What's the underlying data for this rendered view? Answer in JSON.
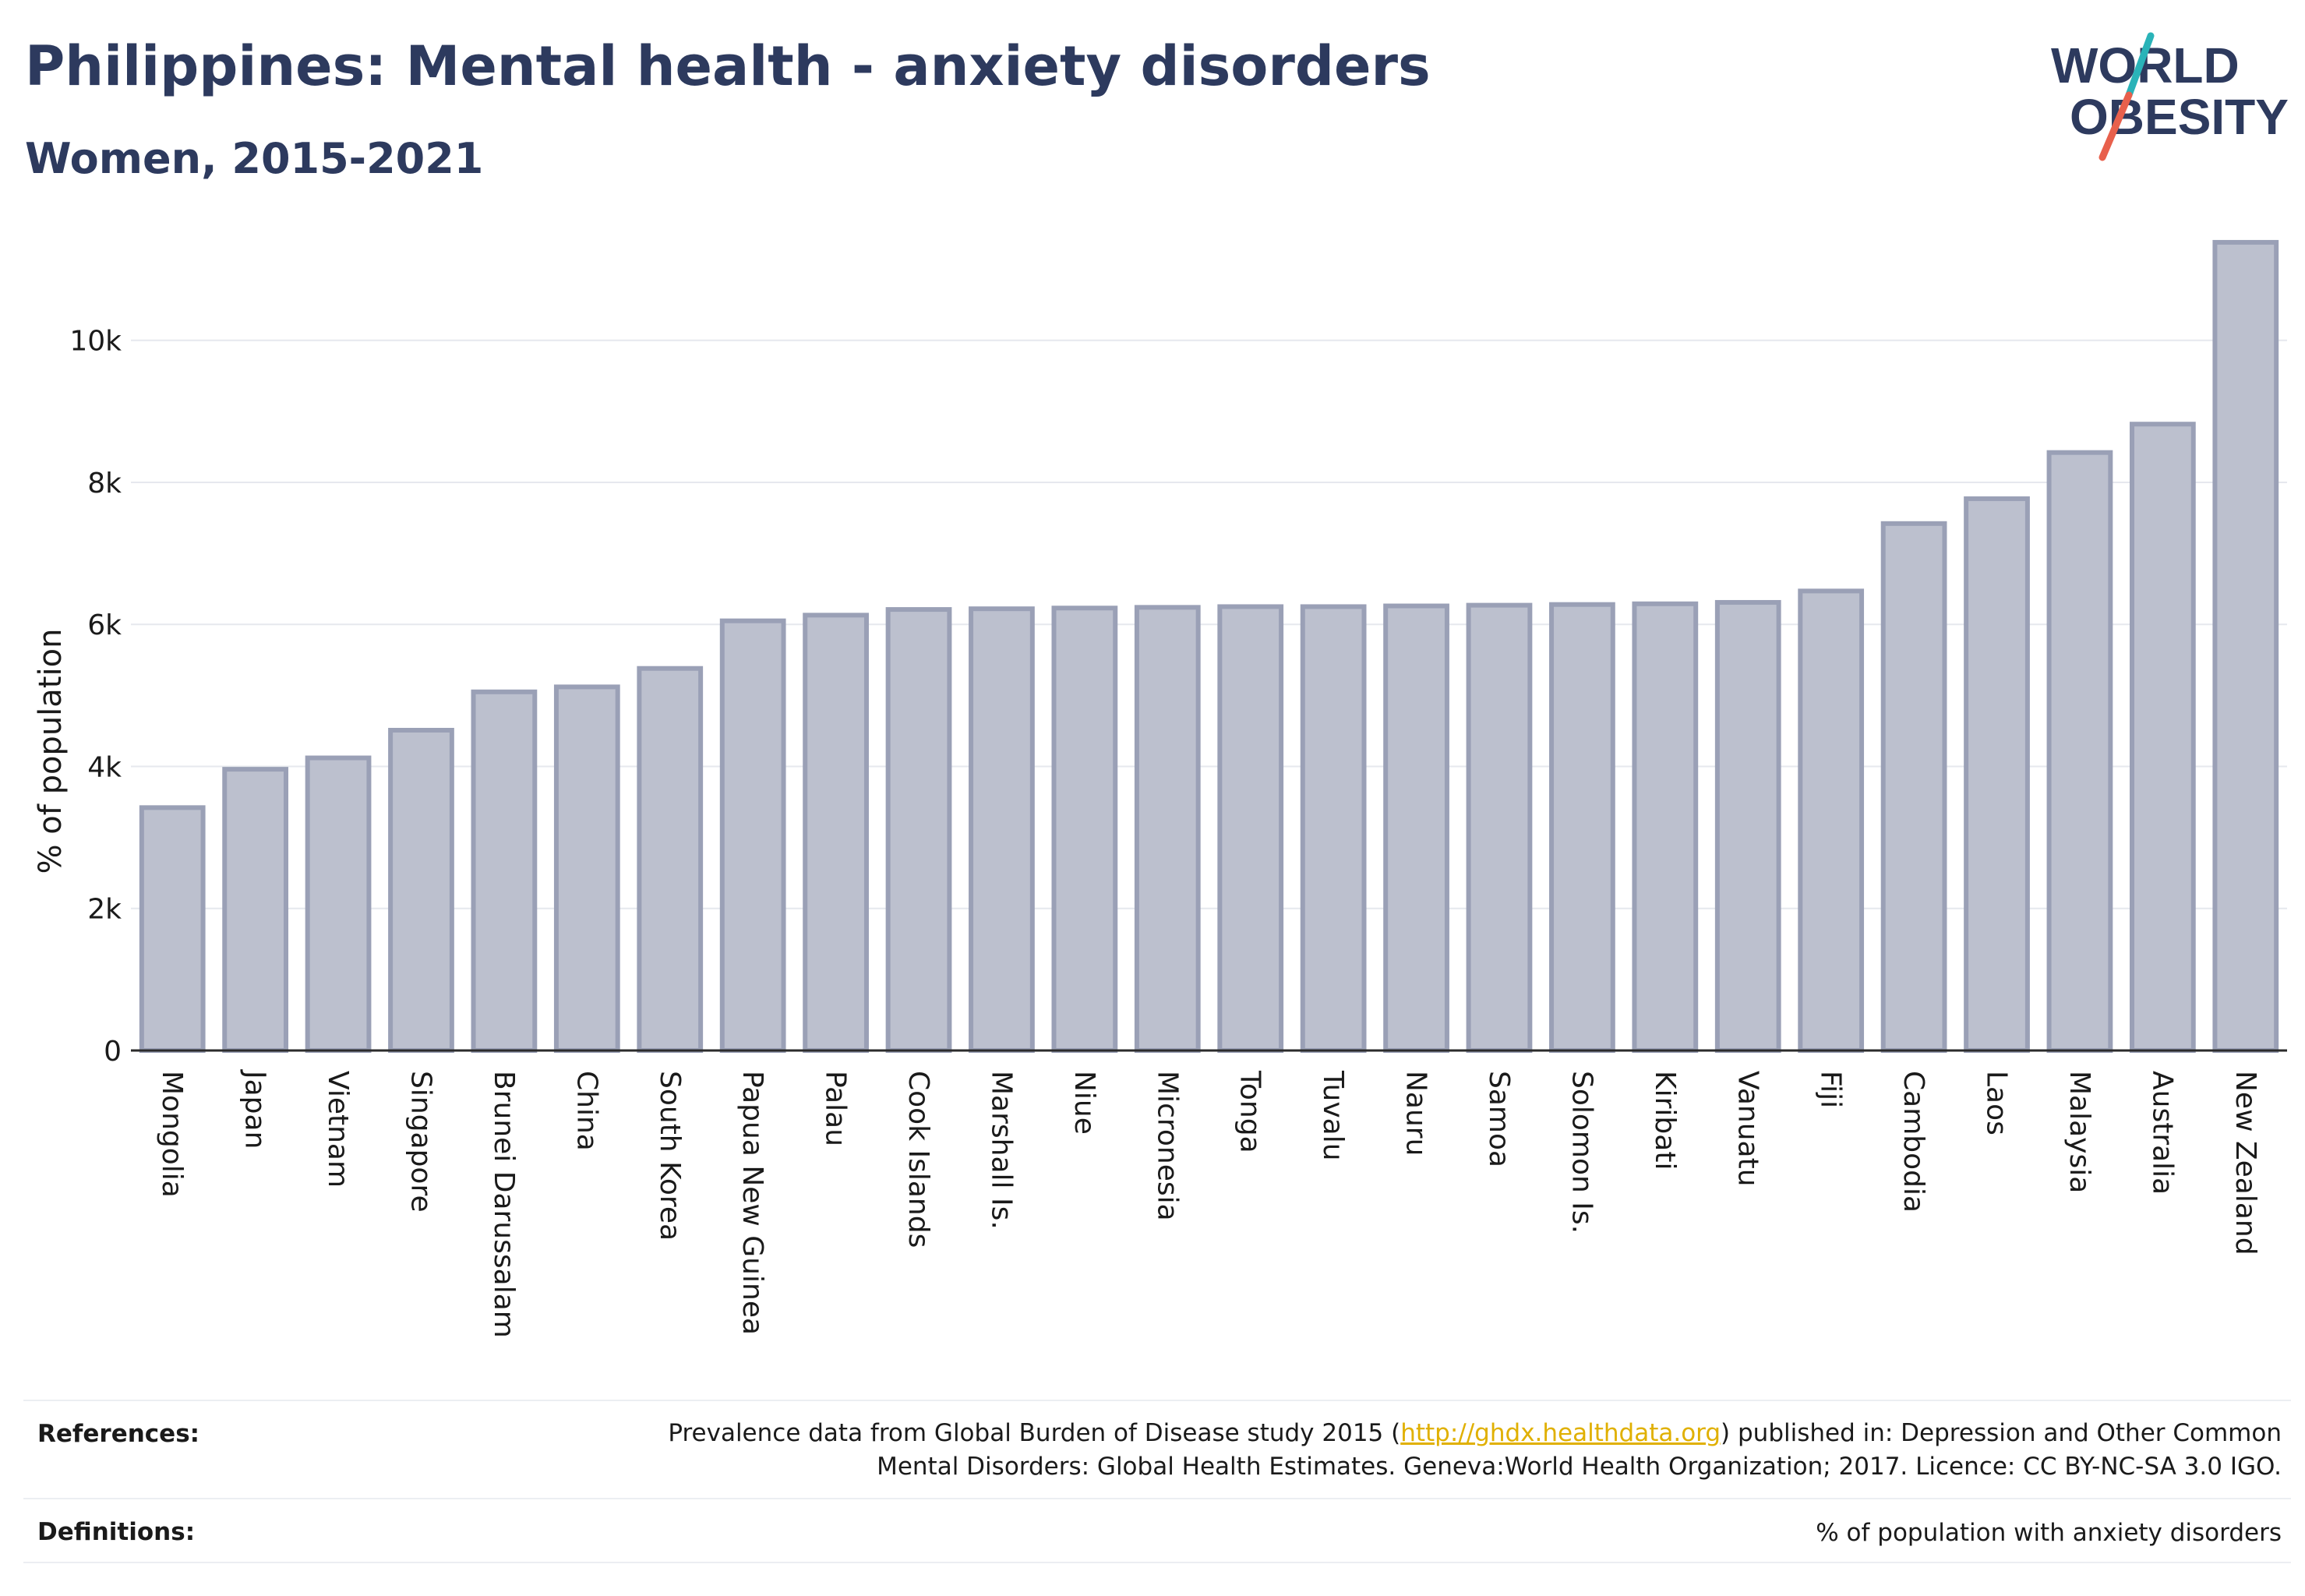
{
  "title": "Philippines: Mental health - anxiety disorders",
  "subtitle": "Women, 2015-2021",
  "logo": {
    "line1": "WORLD",
    "line2": "OBESITY",
    "accent_teal": "#2ab3b8",
    "accent_red": "#e8604c",
    "text_color": "#2d3a5e"
  },
  "colors": {
    "bar_fill": "#bcc0ce",
    "bar_stroke": "#9aa0b6",
    "grid": "#e6e8ee",
    "axis": "#2b2b2b"
  },
  "chart_data": {
    "type": "bar",
    "ylabel": "% of population",
    "xlabel": "",
    "ylim": [
      0,
      11500
    ],
    "yticks": [
      0,
      2000,
      4000,
      6000,
      8000,
      10000
    ],
    "ytick_labels": [
      "0",
      "2k",
      "4k",
      "6k",
      "8k",
      "10k"
    ],
    "grid": true,
    "categories": [
      "Mongolia",
      "Japan",
      "Vietnam",
      "Singapore",
      "Brunei Darussalam",
      "China",
      "South Korea",
      "Papua New Guinea",
      "Palau",
      "Cook Islands",
      "Marshall Is.",
      "Niue",
      "Micronesia",
      "Tonga",
      "Tuvalu",
      "Nauru",
      "Samoa",
      "Solomon Is.",
      "Kiribati",
      "Vanuatu",
      "Fiji",
      "Cambodia",
      "Laos",
      "Malaysia",
      "Australia",
      "New Zealand"
    ],
    "values": [
      3420,
      3960,
      4120,
      4510,
      5050,
      5120,
      5380,
      6050,
      6130,
      6210,
      6220,
      6230,
      6240,
      6250,
      6250,
      6260,
      6270,
      6280,
      6290,
      6310,
      6470,
      7420,
      7770,
      8420,
      8820,
      11380
    ]
  },
  "footer": {
    "references_label": "References:",
    "references_line1_pre": "Prevalence data from Global Burden of Disease study 2015 (",
    "references_link": "http://ghdx.healthdata.org",
    "references_line1_post": ") published in: Depression and Other Common",
    "references_line2": "Mental Disorders: Global Health Estimates. Geneva:World Health Organization; 2017. Licence: CC BY-NC-SA 3.0 IGO.",
    "definitions_label": "Definitions:",
    "definitions_text": "% of population with anxiety disorders"
  }
}
